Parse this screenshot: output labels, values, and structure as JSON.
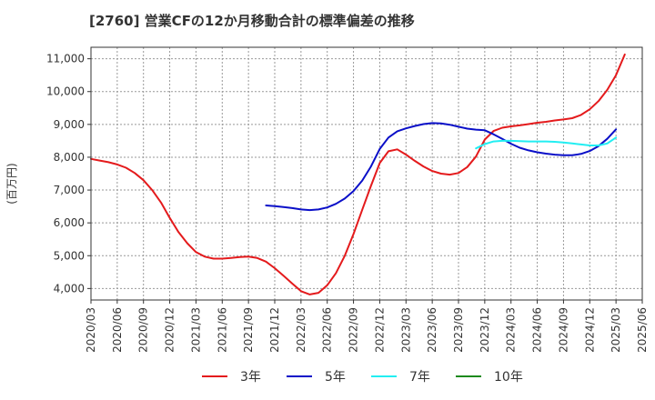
{
  "chart_data": {
    "type": "line",
    "title": "[2760]  営業CFの12か月移動合計の標準偏差の推移",
    "ylabel": "(百万円)",
    "xlabel": "",
    "ylim": [
      3650,
      11350
    ],
    "xlim": [
      "2020/03",
      "2025/06"
    ],
    "grid": true,
    "legend_position": "bottom",
    "y_ticks": [
      4000,
      5000,
      6000,
      7000,
      8000,
      9000,
      10000,
      11000
    ],
    "y_tick_labels": [
      "4,000",
      "5,000",
      "6,000",
      "7,000",
      "8,000",
      "9,000",
      "10,000",
      "11,000"
    ],
    "x_ticks": [
      "2020/03",
      "2020/06",
      "2020/09",
      "2020/12",
      "2021/03",
      "2021/06",
      "2021/09",
      "2021/12",
      "2022/03",
      "2022/06",
      "2022/09",
      "2022/12",
      "2023/03",
      "2023/06",
      "2023/09",
      "2023/12",
      "2024/03",
      "2024/06",
      "2024/09",
      "2024/12",
      "2025/03",
      "2025/06"
    ],
    "series": [
      {
        "name": "3年",
        "color": "#e41a1c",
        "points": [
          [
            "2020/03",
            7950
          ],
          [
            "2020/04",
            7900
          ],
          [
            "2020/05",
            7850
          ],
          [
            "2020/06",
            7780
          ],
          [
            "2020/07",
            7680
          ],
          [
            "2020/08",
            7520
          ],
          [
            "2020/09",
            7300
          ],
          [
            "2020/10",
            7000
          ],
          [
            "2020/11",
            6620
          ],
          [
            "2020/12",
            6150
          ],
          [
            "2021/01",
            5720
          ],
          [
            "2021/02",
            5380
          ],
          [
            "2021/03",
            5110
          ],
          [
            "2021/04",
            4970
          ],
          [
            "2021/05",
            4910
          ],
          [
            "2021/06",
            4910
          ],
          [
            "2021/07",
            4930
          ],
          [
            "2021/08",
            4960
          ],
          [
            "2021/09",
            4970
          ],
          [
            "2021/10",
            4930
          ],
          [
            "2021/11",
            4820
          ],
          [
            "2021/12",
            4620
          ],
          [
            "2022/01",
            4390
          ],
          [
            "2022/02",
            4150
          ],
          [
            "2022/03",
            3920
          ],
          [
            "2022/04",
            3820
          ],
          [
            "2022/05",
            3870
          ],
          [
            "2022/06",
            4100
          ],
          [
            "2022/07",
            4470
          ],
          [
            "2022/08",
            5000
          ],
          [
            "2022/09",
            5660
          ],
          [
            "2022/10",
            6400
          ],
          [
            "2022/11",
            7130
          ],
          [
            "2022/12",
            7820
          ],
          [
            "2023/01",
            8180
          ],
          [
            "2023/02",
            8240
          ],
          [
            "2023/03",
            8080
          ],
          [
            "2023/04",
            7890
          ],
          [
            "2023/05",
            7720
          ],
          [
            "2023/06",
            7580
          ],
          [
            "2023/07",
            7500
          ],
          [
            "2023/08",
            7470
          ],
          [
            "2023/09",
            7520
          ],
          [
            "2023/10",
            7700
          ],
          [
            "2023/11",
            8020
          ],
          [
            "2023/12",
            8540
          ],
          [
            "2024/01",
            8800
          ],
          [
            "2024/02",
            8900
          ],
          [
            "2024/03",
            8940
          ],
          [
            "2024/04",
            8970
          ],
          [
            "2024/05",
            9010
          ],
          [
            "2024/06",
            9050
          ],
          [
            "2024/07",
            9080
          ],
          [
            "2024/08",
            9120
          ],
          [
            "2024/09",
            9150
          ],
          [
            "2024/10",
            9190
          ],
          [
            "2024/11",
            9290
          ],
          [
            "2024/12",
            9460
          ],
          [
            "2025/01",
            9710
          ],
          [
            "2025/02",
            10050
          ],
          [
            "2025/03",
            10500
          ],
          [
            "2025/04",
            11130
          ]
        ]
      },
      {
        "name": "5年",
        "color": "#0a0fc8",
        "points": [
          [
            "2021/11",
            6530
          ],
          [
            "2021/12",
            6510
          ],
          [
            "2022/01",
            6480
          ],
          [
            "2022/02",
            6450
          ],
          [
            "2022/03",
            6410
          ],
          [
            "2022/04",
            6390
          ],
          [
            "2022/05",
            6410
          ],
          [
            "2022/06",
            6470
          ],
          [
            "2022/07",
            6580
          ],
          [
            "2022/08",
            6740
          ],
          [
            "2022/09",
            6970
          ],
          [
            "2022/10",
            7290
          ],
          [
            "2022/11",
            7720
          ],
          [
            "2022/12",
            8250
          ],
          [
            "2023/01",
            8600
          ],
          [
            "2023/02",
            8790
          ],
          [
            "2023/03",
            8880
          ],
          [
            "2023/04",
            8950
          ],
          [
            "2023/05",
            9010
          ],
          [
            "2023/06",
            9040
          ],
          [
            "2023/07",
            9030
          ],
          [
            "2023/08",
            8990
          ],
          [
            "2023/09",
            8930
          ],
          [
            "2023/10",
            8870
          ],
          [
            "2023/11",
            8840
          ],
          [
            "2023/12",
            8820
          ],
          [
            "2024/01",
            8700
          ],
          [
            "2024/02",
            8560
          ],
          [
            "2024/03",
            8410
          ],
          [
            "2024/04",
            8290
          ],
          [
            "2024/05",
            8210
          ],
          [
            "2024/06",
            8150
          ],
          [
            "2024/07",
            8110
          ],
          [
            "2024/08",
            8080
          ],
          [
            "2024/09",
            8060
          ],
          [
            "2024/10",
            8060
          ],
          [
            "2024/11",
            8100
          ],
          [
            "2024/12",
            8190
          ],
          [
            "2025/01",
            8340
          ],
          [
            "2025/02",
            8560
          ],
          [
            "2025/03",
            8850
          ]
        ]
      },
      {
        "name": "7年",
        "color": "#22eef2",
        "points": [
          [
            "2023/11",
            8270
          ],
          [
            "2023/12",
            8400
          ],
          [
            "2024/01",
            8480
          ],
          [
            "2024/02",
            8500
          ],
          [
            "2024/03",
            8500
          ],
          [
            "2024/04",
            8490
          ],
          [
            "2024/05",
            8480
          ],
          [
            "2024/06",
            8480
          ],
          [
            "2024/07",
            8480
          ],
          [
            "2024/08",
            8470
          ],
          [
            "2024/09",
            8450
          ],
          [
            "2024/10",
            8420
          ],
          [
            "2024/11",
            8390
          ],
          [
            "2024/12",
            8360
          ],
          [
            "2025/01",
            8360
          ],
          [
            "2025/02",
            8420
          ],
          [
            "2025/03",
            8600
          ]
        ]
      },
      {
        "name": "10年",
        "color": "#1d8a1d",
        "points": []
      }
    ]
  }
}
